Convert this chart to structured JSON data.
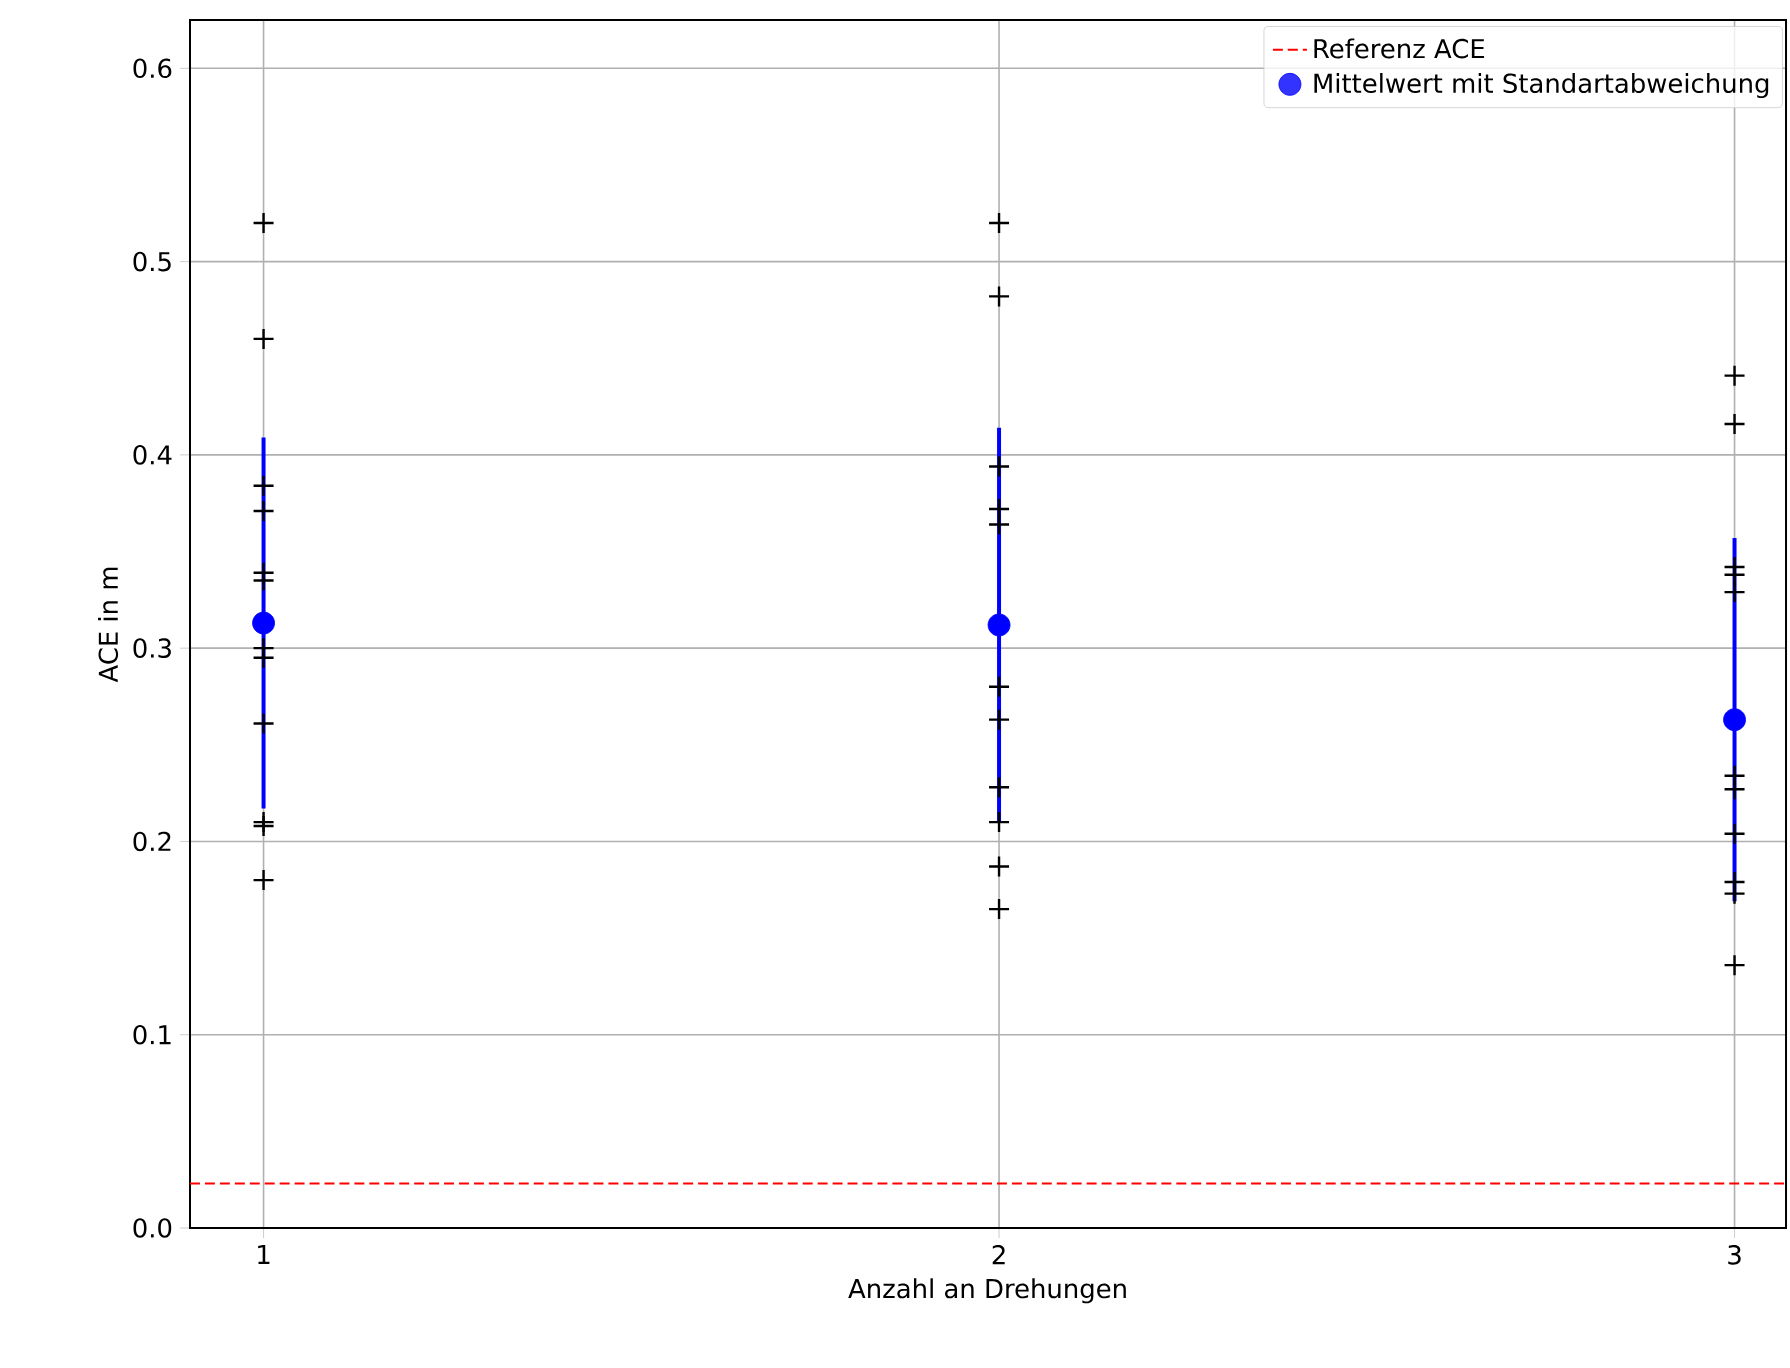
{
  "chart_data": {
    "type": "scatter",
    "xlabel": "Anzahl an Drehungen",
    "ylabel": "ACE in m",
    "xlim": [
      0.9,
      3.07
    ],
    "ylim": [
      0,
      0.625
    ],
    "xticks": [
      1,
      2,
      3
    ],
    "yticks": [
      {
        "value": 0,
        "label": "0.0"
      },
      0.1,
      0.2,
      0.3,
      0.4,
      0.5,
      0.6
    ],
    "grid": true,
    "legend": "top right",
    "series": [
      {
        "marker": "cross",
        "color": "#000000",
        "x": [
          1,
          1,
          1,
          1,
          1,
          1,
          1,
          1,
          1,
          1,
          1,
          1,
          2,
          2,
          2,
          2,
          2,
          2,
          2,
          2,
          2,
          2,
          2,
          3,
          3,
          3,
          3,
          3,
          3,
          3,
          3,
          3,
          3,
          3
        ],
        "values": [
          0.52,
          0.46,
          0.384,
          0.371,
          0.339,
          0.335,
          0.3,
          0.295,
          0.261,
          0.21,
          0.208,
          0.18,
          0.52,
          0.482,
          0.394,
          0.372,
          0.364,
          0.28,
          0.263,
          0.228,
          0.21,
          0.187,
          0.165,
          0.441,
          0.416,
          0.342,
          0.338,
          0.329,
          0.234,
          0.227,
          0.204,
          0.179,
          0.173,
          0.136
        ]
      },
      {
        "marker": "circle",
        "name": "Mittelwert mit Standartabweichung",
        "color": "#0000ff",
        "x": [
          1,
          2,
          3
        ],
        "values": [
          0.313,
          0.312,
          0.263
        ],
        "errors": [
          0.096,
          0.102,
          0.094
        ]
      }
    ],
    "ref_lines": [
      {
        "axis": "y",
        "value": 0.023,
        "label": "Referenz ACE",
        "color": "#ff0000",
        "line_style": "dashed"
      }
    ]
  }
}
